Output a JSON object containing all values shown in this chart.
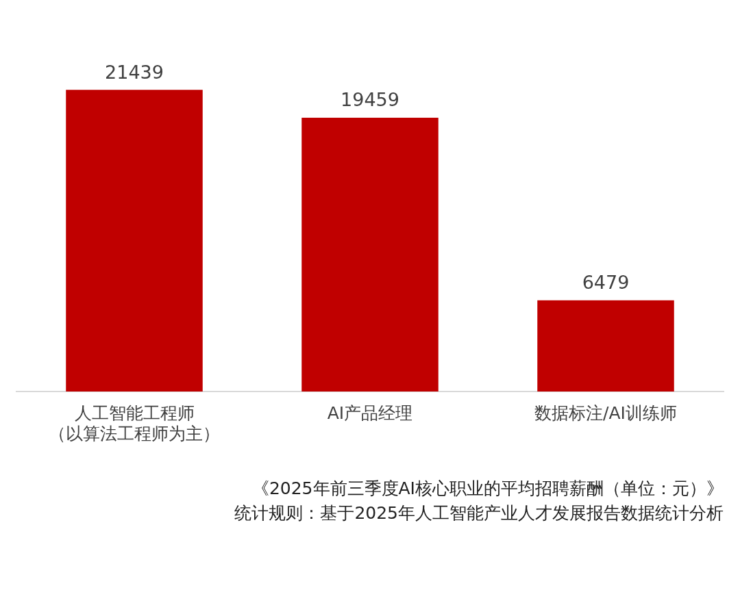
{
  "chart_data": {
    "type": "bar",
    "title": "《2025年前三季度AI核心职业的平均招聘薪酬（单位：元）》",
    "subtitle": "统计规则：基于2025年人工智能产业人才发展报告数据统计分析",
    "categories": [
      "人工智能工程师（以算法工程师为主）",
      "AI产品经理",
      "数据标注/AI训练师"
    ],
    "values": [
      21439,
      19459,
      6479
    ],
    "color": "#c00000",
    "data_labels": true,
    "grid": false,
    "legend": false
  }
}
